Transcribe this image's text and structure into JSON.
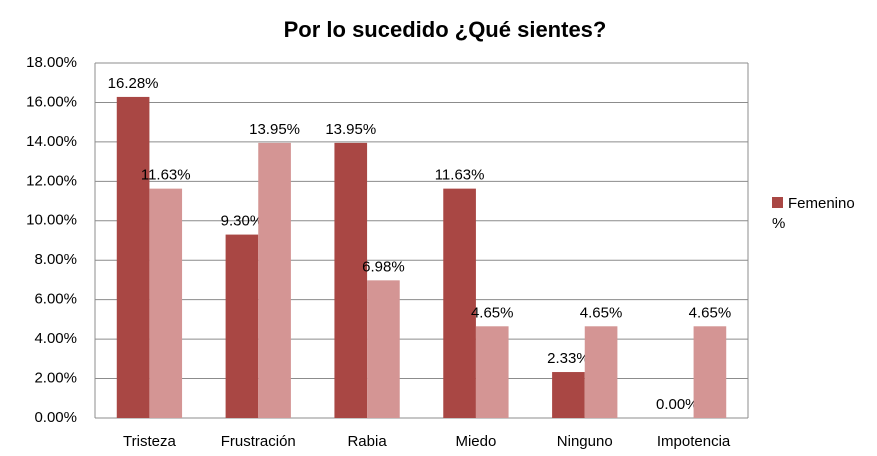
{
  "chart_data": {
    "type": "bar",
    "title": "Por lo sucedido ¿Qué sientes?",
    "categories": [
      "Tristeza",
      "Frustración",
      "Rabia",
      "Miedo",
      "Ninguno",
      "Impotencia"
    ],
    "series": [
      {
        "name": "Femenino %",
        "color": "#a94744",
        "values": [
          16.28,
          9.3,
          13.95,
          11.63,
          2.33,
          0.0
        ],
        "value_labels": [
          "16.28%",
          "9.30%",
          "13.95%",
          "11.63%",
          "2.33%",
          "0.00%"
        ]
      },
      {
        "color": "#d49594",
        "values": [
          11.63,
          13.95,
          6.98,
          4.65,
          4.65,
          4.65
        ],
        "value_labels": [
          "11.63%",
          "13.95%",
          "6.98%",
          "4.65%",
          "4.65%",
          "4.65%"
        ]
      }
    ],
    "ylim": [
      0,
      18
    ],
    "yticks": [
      {
        "value": 0,
        "label": "0.00%"
      },
      {
        "value": 2,
        "label": "2.00%"
      },
      {
        "value": 4,
        "label": "4.00%"
      },
      {
        "value": 6,
        "label": "6.00%"
      },
      {
        "value": 8,
        "label": "8.00%"
      },
      {
        "value": 10,
        "label": "10.00%"
      },
      {
        "value": 12,
        "label": "12.00%"
      },
      {
        "value": 14,
        "label": "14.00%"
      },
      {
        "value": 16,
        "label": "16.00%"
      },
      {
        "value": 18,
        "label": "18.00%"
      }
    ],
    "grid": true,
    "legend": "right"
  }
}
